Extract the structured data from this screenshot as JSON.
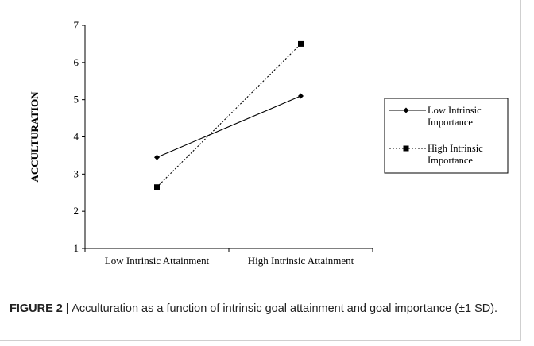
{
  "chart_data": {
    "type": "line",
    "ylabel": "ACCULTURATION",
    "xlabel": "",
    "categories": [
      "Low Intrinsic Attainment",
      "High Intrinsic Attainment"
    ],
    "ylim": [
      1,
      7
    ],
    "yticks": [
      "1",
      "2",
      "3",
      "4",
      "5",
      "6",
      "7"
    ],
    "grid": false,
    "legend_position": "right",
    "series": [
      {
        "name": "Low Intrinsic Importance",
        "values": [
          3.45,
          5.1
        ],
        "line_style": "solid",
        "marker": "diamond",
        "color": "#000000"
      },
      {
        "name": "High Intrinsic Importance",
        "values": [
          2.65,
          6.5
        ],
        "line_style": "dotted",
        "marker": "square",
        "color": "#000000"
      }
    ]
  },
  "caption": {
    "label": "FIGURE 2 |",
    "text": " Acculturation as a function of intrinsic goal attainment and goal importance (±1 SD)."
  },
  "colors": {
    "axis": "#000000",
    "frame": "#cfcfcf"
  }
}
